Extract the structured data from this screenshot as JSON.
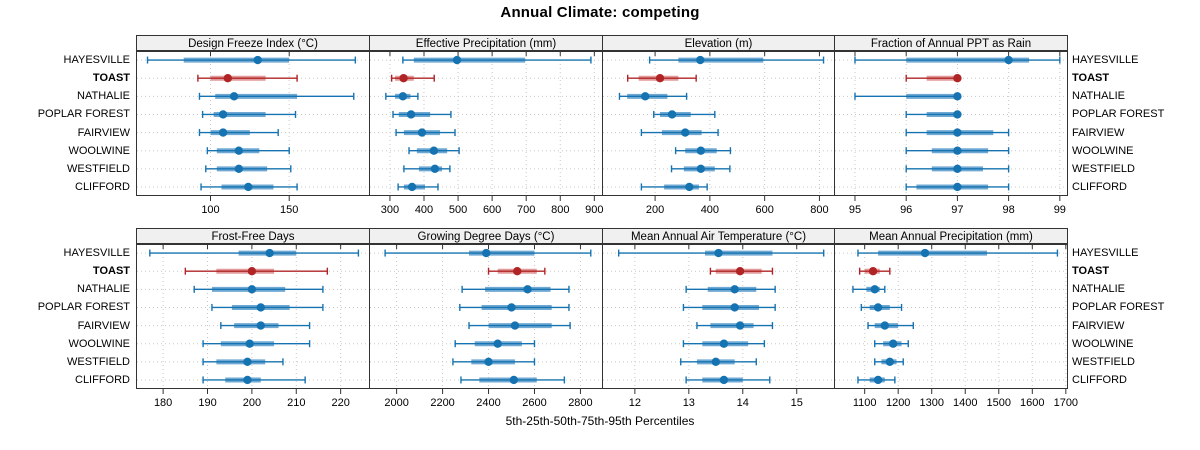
{
  "chart_data": {
    "type": "dotplot-percentiles",
    "title": "Annual Climate: competing",
    "xlabel": "5th-25th-50th-75th-95th Percentiles",
    "categories": [
      "HAYESVILLE",
      "TOAST",
      "NATHALIE",
      "POPLAR FOREST",
      "FAIRVIEW",
      "WOOLWINE",
      "WESTFIELD",
      "CLIFFORD"
    ],
    "highlight_category": "TOAST",
    "legend_position": "none",
    "grid": "dotted",
    "colors": {
      "series": "#1673B1",
      "series_band": "#6FA8D2",
      "highlight": "#B02426",
      "highlight_band": "#E39A9A",
      "gridline": "#C8C8C8",
      "panel_border": "#333333",
      "header_bg": "#F0F0F0",
      "text": "#000000"
    },
    "panels": [
      {
        "title": "Design Freeze Index (°C)",
        "xlim": [
          53,
          201
        ],
        "ticks": [
          100,
          150
        ],
        "values": [
          [
            60,
            83,
            130,
            150,
            192
          ],
          [
            92,
            100,
            111,
            135,
            155
          ],
          [
            93,
            103,
            115,
            155,
            191
          ],
          [
            95,
            102,
            108,
            135,
            154
          ],
          [
            93,
            100,
            108,
            125,
            143
          ],
          [
            98,
            104,
            118,
            131,
            150
          ],
          [
            97,
            104,
            118,
            136,
            151
          ],
          [
            94,
            107,
            124,
            140,
            155
          ]
        ]
      },
      {
        "title": "Effective Precipitation (mm)",
        "xlim": [
          240,
          924
        ],
        "ticks": [
          300,
          400,
          500,
          600,
          700,
          800,
          900
        ],
        "values": [
          [
            338,
            370,
            497,
            697,
            890
          ],
          [
            305,
            315,
            340,
            370,
            430
          ],
          [
            288,
            315,
            338,
            360,
            382
          ],
          [
            309,
            326,
            362,
            418,
            479
          ],
          [
            318,
            341,
            394,
            447,
            491
          ],
          [
            356,
            379,
            429,
            468,
            503
          ],
          [
            341,
            385,
            432,
            453,
            476
          ],
          [
            324,
            341,
            365,
            403,
            441
          ]
        ]
      },
      {
        "title": "Elevation (m)",
        "xlim": [
          8,
          855
        ],
        "ticks": [
          200,
          400,
          600,
          800
        ],
        "values": [
          [
            180,
            285,
            365,
            595,
            815
          ],
          [
            100,
            140,
            218,
            285,
            350
          ],
          [
            70,
            98,
            164,
            245,
            315
          ],
          [
            195,
            218,
            262,
            330,
            418
          ],
          [
            150,
            225,
            310,
            370,
            430
          ],
          [
            275,
            310,
            367,
            425,
            475
          ],
          [
            260,
            305,
            367,
            418,
            473
          ],
          [
            150,
            233,
            325,
            360,
            390
          ]
        ]
      },
      {
        "title": "Fraction of Annual PPT as Rain",
        "xlim": [
          94.6,
          99.15
        ],
        "ticks": [
          95,
          96,
          97,
          98,
          99
        ],
        "values": [
          [
            95,
            96,
            98,
            98.4,
            99
          ],
          [
            96,
            96.4,
            97,
            97,
            97
          ],
          [
            95,
            96,
            97,
            97,
            97
          ],
          [
            96,
            96.4,
            97,
            97,
            97
          ],
          [
            96,
            96.4,
            97,
            97.7,
            98
          ],
          [
            96,
            96.5,
            97,
            97.6,
            98
          ],
          [
            96,
            96.5,
            97,
            97.5,
            98
          ],
          [
            96,
            96.2,
            97,
            97.6,
            98
          ]
        ]
      },
      {
        "title": "Frost-Free Days",
        "xlim": [
          174,
          226.5
        ],
        "ticks": [
          180,
          190,
          200,
          210,
          220
        ],
        "values": [
          [
            177,
            197,
            204,
            210,
            224
          ],
          [
            185,
            192,
            200,
            205,
            217
          ],
          [
            187,
            191,
            200,
            207.5,
            216
          ],
          [
            191,
            195.5,
            202,
            208.5,
            216
          ],
          [
            193,
            196,
            202,
            206,
            213
          ],
          [
            189,
            193,
            199.5,
            205,
            213
          ],
          [
            189,
            192,
            199,
            203,
            207
          ],
          [
            189,
            194,
            199,
            202,
            212
          ]
        ]
      },
      {
        "title": "Growing Degree Days (°C)",
        "xlim": [
          1882,
          2896
        ],
        "ticks": [
          2000,
          2200,
          2400,
          2600,
          2800
        ],
        "values": [
          [
            1950,
            2315,
            2390,
            2600,
            2845
          ],
          [
            2400,
            2440,
            2525,
            2610,
            2645
          ],
          [
            2285,
            2385,
            2570,
            2670,
            2750
          ],
          [
            2275,
            2370,
            2500,
            2675,
            2750
          ],
          [
            2315,
            2400,
            2515,
            2675,
            2755
          ],
          [
            2255,
            2340,
            2440,
            2545,
            2600
          ],
          [
            2245,
            2325,
            2400,
            2515,
            2600
          ],
          [
            2280,
            2360,
            2510,
            2610,
            2730
          ]
        ]
      },
      {
        "title": "Mean Annual Air Temperature (°C)",
        "xlim": [
          11.4,
          15.7
        ],
        "ticks": [
          12,
          13,
          14,
          15
        ],
        "values": [
          [
            11.7,
            13.3,
            13.55,
            14.55,
            15.5
          ],
          [
            13.4,
            13.5,
            13.95,
            14.35,
            14.55
          ],
          [
            12.95,
            13.35,
            13.85,
            14.25,
            14.6
          ],
          [
            12.9,
            13.25,
            13.85,
            14.3,
            14.6
          ],
          [
            13.15,
            13.4,
            13.95,
            14.2,
            14.55
          ],
          [
            12.9,
            13.25,
            13.65,
            14.1,
            14.4
          ],
          [
            12.85,
            13.15,
            13.5,
            13.85,
            14.25
          ],
          [
            12.95,
            13.25,
            13.65,
            14.0,
            14.5
          ]
        ]
      },
      {
        "title": "Mean Annual Precipitation (mm)",
        "xlim": [
          1010,
          1705
        ],
        "ticks": [
          1100,
          1200,
          1300,
          1400,
          1500,
          1600,
          1700
        ],
        "values": [
          [
            1080,
            1140,
            1280,
            1465,
            1675
          ],
          [
            1085,
            1100,
            1125,
            1145,
            1175
          ],
          [
            1065,
            1105,
            1130,
            1145,
            1160
          ],
          [
            1090,
            1115,
            1140,
            1175,
            1210
          ],
          [
            1110,
            1130,
            1160,
            1200,
            1245
          ],
          [
            1130,
            1155,
            1185,
            1210,
            1230
          ],
          [
            1130,
            1150,
            1175,
            1195,
            1215
          ],
          [
            1080,
            1115,
            1140,
            1160,
            1190
          ]
        ]
      }
    ]
  }
}
